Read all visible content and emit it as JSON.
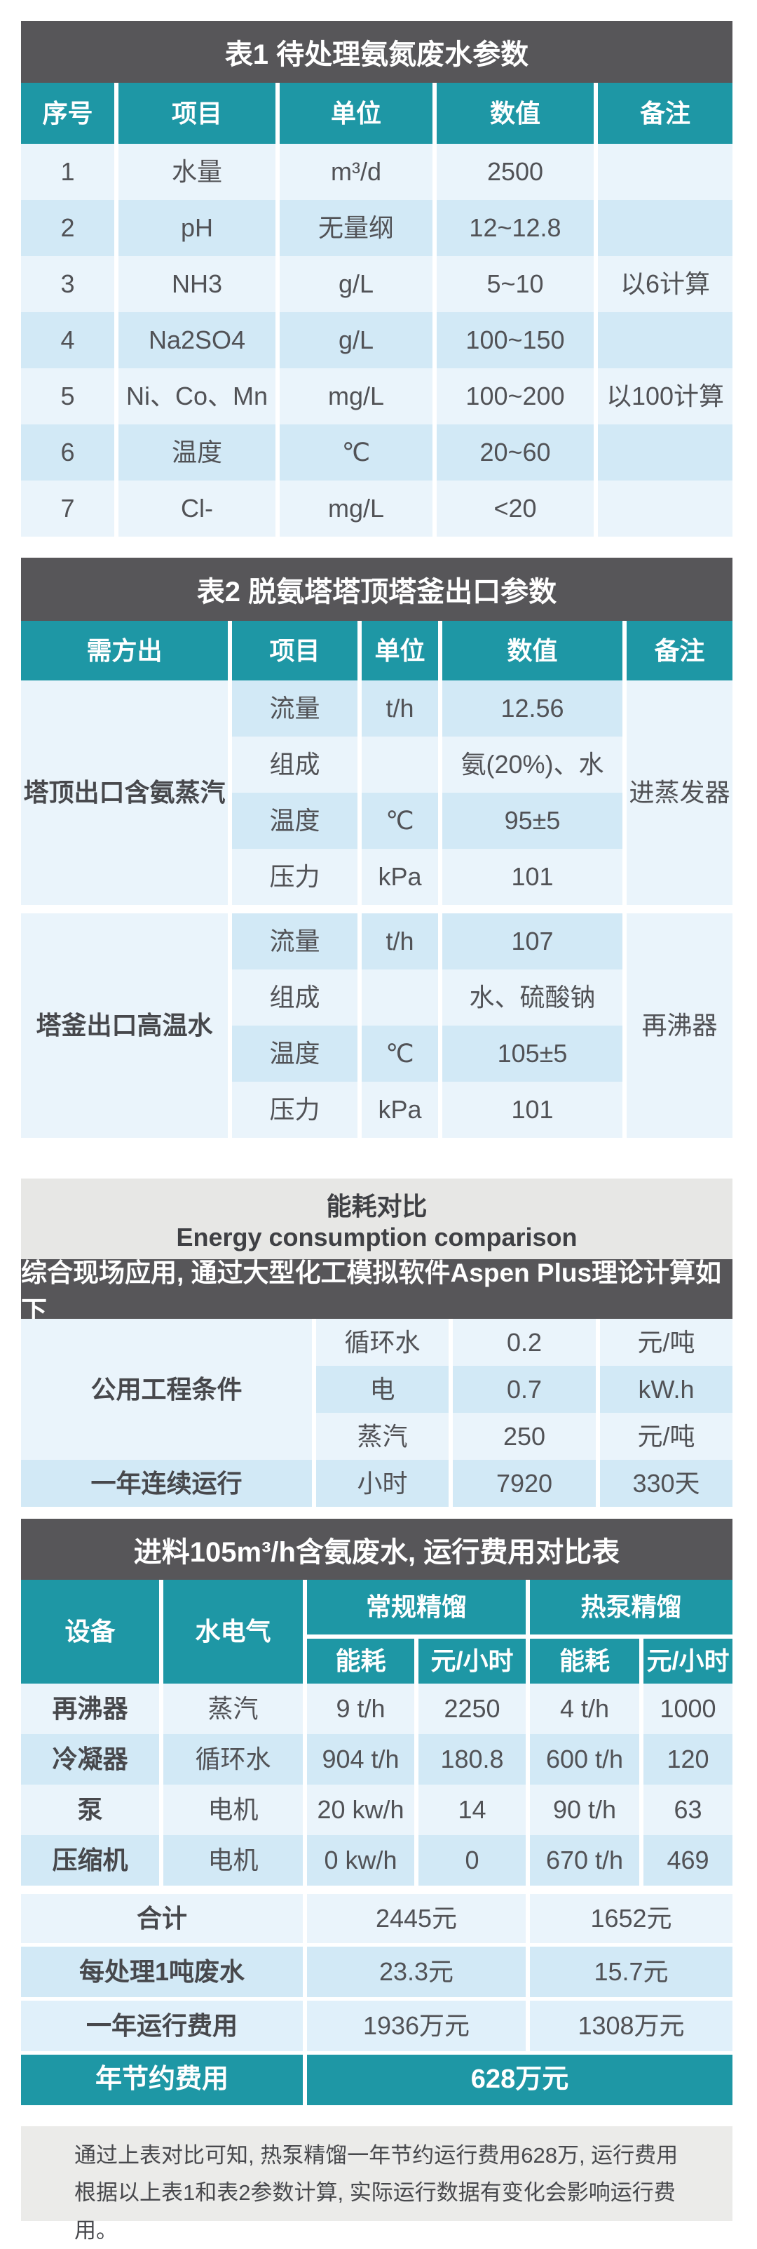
{
  "table1": {
    "title": "表1  待处理氨氮废水参数",
    "headers": [
      "序号",
      "项目",
      "单位",
      "数值",
      "备注"
    ],
    "rows": [
      [
        "1",
        "水量",
        "m³/d",
        "2500",
        ""
      ],
      [
        "2",
        "pH",
        "无量纲",
        "12~12.8",
        ""
      ],
      [
        "3",
        "NH3",
        "g/L",
        "5~10",
        "以6计算"
      ],
      [
        "4",
        "Na2SO4",
        "g/L",
        "100~150",
        ""
      ],
      [
        "5",
        "Ni、Co、Mn",
        "mg/L",
        "100~200",
        "以100计算"
      ],
      [
        "6",
        "温度",
        "℃",
        "20~60",
        ""
      ],
      [
        "7",
        "Cl-",
        "mg/L",
        "<20",
        ""
      ]
    ]
  },
  "table2": {
    "title": "表2  脱氨塔塔顶塔釜出口参数",
    "headers": [
      "需方出",
      "项目",
      "单位",
      "数值",
      "备注"
    ],
    "groups": [
      {
        "label": "塔顶出口含氨蒸汽",
        "remark": "进蒸发器",
        "rows": [
          [
            "流量",
            "t/h",
            "12.56"
          ],
          [
            "组成",
            "",
            "氨(20%)、水"
          ],
          [
            "温度",
            "℃",
            "95±5"
          ],
          [
            "压力",
            "kPa",
            "101"
          ]
        ]
      },
      {
        "label": "塔釜出口高温水",
        "remark": "再沸器",
        "rows": [
          [
            "流量",
            "t/h",
            "107"
          ],
          [
            "组成",
            "",
            "水、硫酸钠"
          ],
          [
            "温度",
            "℃",
            "105±5"
          ],
          [
            "压力",
            "kPa",
            "101"
          ]
        ]
      }
    ]
  },
  "energy": {
    "title_cn": "能耗对比",
    "title_en": "Energy consumption comparison",
    "note": "综合现场应用, 通过大型化工模拟软件Aspen Plus理论计算如下",
    "util_label": "公用工程条件",
    "util_rows": [
      [
        "循环水",
        "0.2",
        "元/吨"
      ],
      [
        "电",
        "0.7",
        "kW.h"
      ],
      [
        "蒸汽",
        "250",
        "元/吨"
      ]
    ],
    "year_row": [
      "一年连续运行",
      "小时",
      "7920",
      "330天"
    ]
  },
  "table4": {
    "title": "进料105m³/h含氨废水, 运行费用对比表",
    "headers": {
      "device": "设备",
      "utility": "水电气",
      "conventional": "常规精馏",
      "heat_pump": "热泵精馏",
      "energy": "能耗",
      "cost": "元/小时"
    },
    "rows": [
      [
        "再沸器",
        "蒸汽",
        "9 t/h",
        "2250",
        "4 t/h",
        "1000"
      ],
      [
        "冷凝器",
        "循环水",
        "904 t/h",
        "180.8",
        "600 t/h",
        "120"
      ],
      [
        "泵",
        "电机",
        "20 kw/h",
        "14",
        "90 t/h",
        "63"
      ],
      [
        "压缩机",
        "电机",
        "0 kw/h",
        "0",
        "670 t/h",
        "469"
      ]
    ],
    "totals": [
      {
        "label": "合计",
        "v1": "2445元",
        "v2": "1652元"
      },
      {
        "label": "每处理1吨废水",
        "v1": "23.3元",
        "v2": "15.7元"
      },
      {
        "label": "一年运行费用",
        "v1": "1936万元",
        "v2": "1308万元"
      }
    ],
    "saving": {
      "label": "年节约费用",
      "value": "628万元"
    }
  },
  "footer": {
    "text": "通过上表对比可知, 热泵精馏一年节约运行费用628万, 运行费用根据以上表1和表2参数计算, 实际运行数据有变化会影响运行费用。"
  },
  "colors": {
    "teal": "#1E97A5",
    "dark_band": "#575659",
    "row_light": "#EAF4FB",
    "row_mid": "#D2E9F6",
    "gray_band": "#E7E7E5",
    "footer_box": "#EBEBE9"
  }
}
